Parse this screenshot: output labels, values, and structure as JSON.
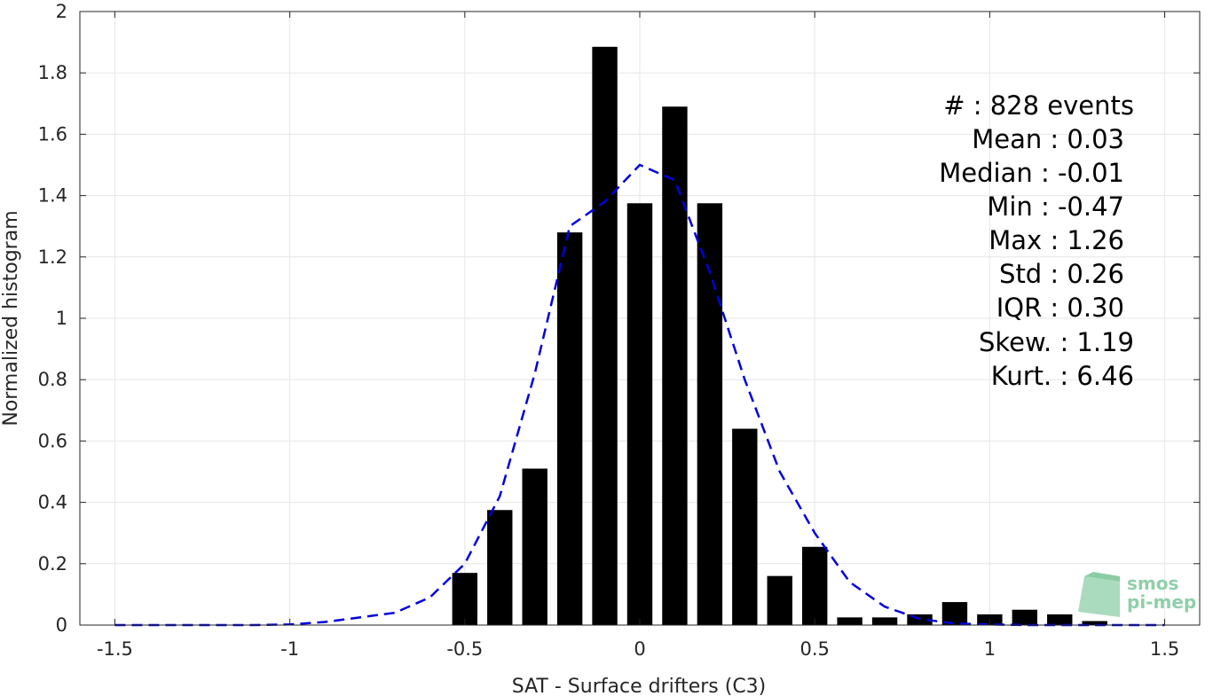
{
  "chart_data": {
    "type": "bar",
    "xlabel": "SAT - Surface drifters (C3)",
    "ylabel": "Normalized histogram",
    "xlim": [
      -1.6,
      1.6
    ],
    "ylim": [
      0,
      2
    ],
    "xticks": [
      "-1.5",
      "-1",
      "-0.5",
      "0",
      "0.5",
      "1",
      "1.5"
    ],
    "xtick_values": [
      -1.5,
      -1,
      -0.5,
      0,
      0.5,
      1,
      1.5
    ],
    "yticks": [
      "0",
      "0.2",
      "0.4",
      "0.6",
      "0.8",
      "1",
      "1.2",
      "1.4",
      "1.6",
      "1.8",
      "2"
    ],
    "ytick_values": [
      0,
      0.2,
      0.4,
      0.6,
      0.8,
      1,
      1.2,
      1.4,
      1.6,
      1.8,
      2
    ],
    "grid": true,
    "bar_color": "#000000",
    "fit_color": "#0000dd",
    "bars": {
      "x": [
        -0.5,
        -0.4,
        -0.3,
        -0.2,
        -0.1,
        0.0,
        0.1,
        0.2,
        0.3,
        0.4,
        0.5,
        0.6,
        0.7,
        0.8,
        0.9,
        1.0,
        1.1,
        1.2,
        1.3
      ],
      "values": [
        0.17,
        0.375,
        0.51,
        1.28,
        1.885,
        1.375,
        1.69,
        1.375,
        0.64,
        0.16,
        0.255,
        0.025,
        0.025,
        0.035,
        0.075,
        0.035,
        0.05,
        0.035,
        0.013
      ]
    },
    "fit_curve": {
      "style": "dashed",
      "x": [
        -1.5,
        -1.4,
        -1.3,
        -1.2,
        -1.1,
        -1.0,
        -0.9,
        -0.8,
        -0.7,
        -0.6,
        -0.5,
        -0.4,
        -0.3,
        -0.2,
        -0.1,
        0.0,
        0.1,
        0.2,
        0.3,
        0.4,
        0.5,
        0.6,
        0.7,
        0.8,
        0.9,
        1.0,
        1.1,
        1.2,
        1.3,
        1.4,
        1.5
      ],
      "y": [
        0.0,
        0.0,
        0.0,
        0.0,
        0.0,
        0.002,
        0.01,
        0.025,
        0.04,
        0.09,
        0.2,
        0.42,
        0.82,
        1.3,
        1.38,
        1.5,
        1.45,
        1.15,
        0.8,
        0.5,
        0.3,
        0.14,
        0.06,
        0.02,
        0.005,
        0.002,
        0.0,
        0.0,
        0.0,
        0.0,
        0.0
      ]
    },
    "annotations": [
      "#  : 828 events",
      "Mean : 0.03",
      "Median : -0.01",
      "Min : -0.47",
      "Max : 1.26",
      "Std : 0.26",
      "IQR : 0.30",
      "Skew. : 1.19",
      "Kurt. : 6.46"
    ]
  },
  "logo": {
    "line1": "smos",
    "line2": "pi-mep"
  }
}
